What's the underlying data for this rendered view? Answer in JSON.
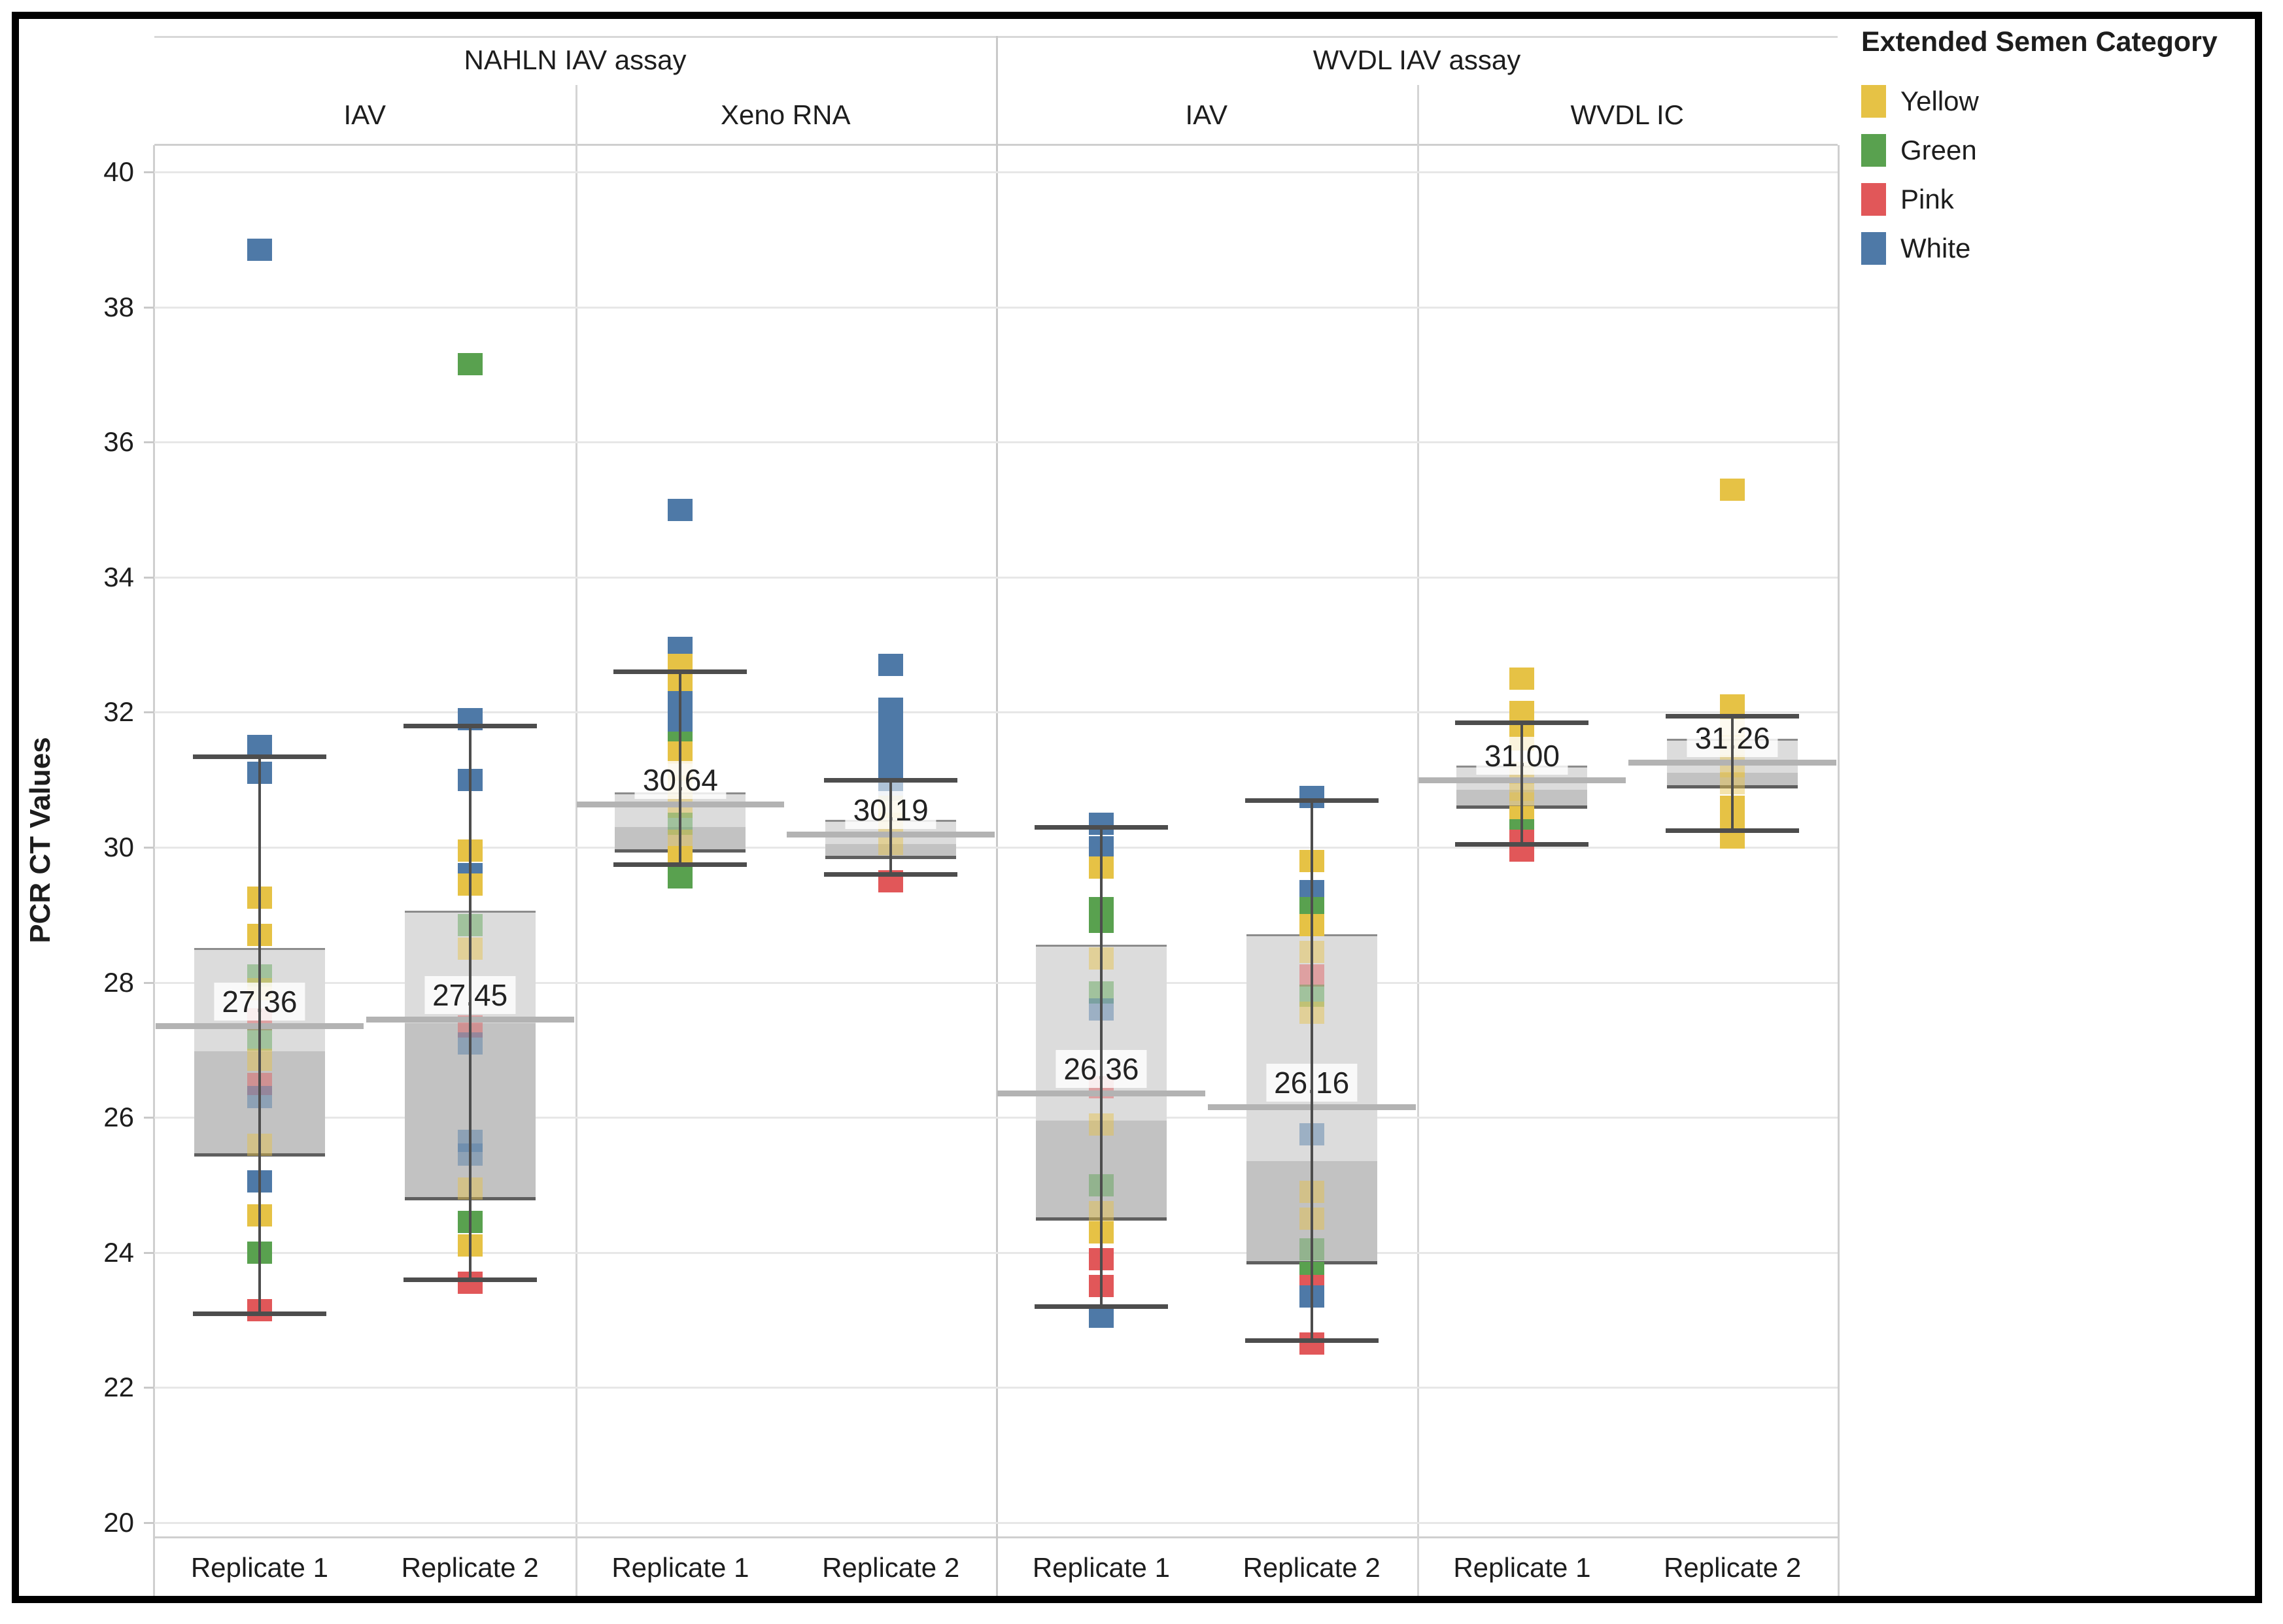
{
  "y_axis": {
    "title": "PCR CT Values",
    "ticks": [
      40,
      38,
      36,
      34,
      32,
      30,
      28,
      26,
      24,
      22,
      20
    ]
  },
  "legend": {
    "title": "Extended Semen Category",
    "items": [
      {
        "label": "Yellow",
        "color": "#E6C245"
      },
      {
        "label": "Green",
        "color": "#59A14F"
      },
      {
        "label": "Pink",
        "color": "#E15759"
      },
      {
        "label": "White",
        "color": "#4E79A7"
      }
    ]
  },
  "chart_data": {
    "type": "boxplot-with-points",
    "title": "",
    "ylabel": "PCR CT Values",
    "ylim": [
      20,
      40
    ],
    "grid": true,
    "legend_position": "top-right",
    "legend_title": "Extended Semen Category",
    "categories": [
      "Yellow",
      "Green",
      "Pink",
      "White"
    ],
    "colors": {
      "Yellow": "#E6C245",
      "Green": "#59A14F",
      "Pink": "#E15759",
      "White": "#4E79A7"
    },
    "assay_headers": [
      {
        "label": "NAHLN IAV assay",
        "panels": [
          0,
          1
        ]
      },
      {
        "label": "WVDL IAV assay",
        "panels": [
          2,
          3
        ]
      }
    ],
    "panels": [
      {
        "assay": "NAHLN IAV assay",
        "target": "IAV",
        "groups": [
          {
            "label": "Replicate 1",
            "mean": 27.36,
            "mean_label": "27.36",
            "whisker_low": 23.1,
            "q1": 25.45,
            "median": 26.98,
            "q3": 28.5,
            "whisker_high": 31.35,
            "points": [
              {
                "v": 38.85,
                "c": "White"
              },
              {
                "v": 31.5,
                "c": "White"
              },
              {
                "v": 31.1,
                "c": "White"
              },
              {
                "v": 29.25,
                "c": "Yellow"
              },
              {
                "v": 28.7,
                "c": "Yellow"
              },
              {
                "v": 28.1,
                "c": "Green",
                "f": true
              },
              {
                "v": 27.9,
                "c": "Yellow",
                "f": true
              },
              {
                "v": 27.45,
                "c": "Pink",
                "f": true
              },
              {
                "v": 27.15,
                "c": "Green",
                "f": true
              },
              {
                "v": 26.85,
                "c": "Yellow",
                "f": true
              },
              {
                "v": 26.5,
                "c": "Pink",
                "f": true
              },
              {
                "v": 26.3,
                "c": "White",
                "f": true
              },
              {
                "v": 25.6,
                "c": "Yellow",
                "f": true
              },
              {
                "v": 25.05,
                "c": "White"
              },
              {
                "v": 24.55,
                "c": "Yellow"
              },
              {
                "v": 24.0,
                "c": "Green"
              },
              {
                "v": 23.15,
                "c": "Pink"
              }
            ]
          },
          {
            "label": "Replicate 2",
            "mean": 27.45,
            "mean_label": "27.45",
            "whisker_low": 23.6,
            "q1": 24.8,
            "median": 27.4,
            "q3": 29.05,
            "whisker_high": 31.8,
            "points": [
              {
                "v": 37.15,
                "c": "Green"
              },
              {
                "v": 31.9,
                "c": "White"
              },
              {
                "v": 31.0,
                "c": "White"
              },
              {
                "v": 29.95,
                "c": "Yellow"
              },
              {
                "v": 29.6,
                "c": "White"
              },
              {
                "v": 29.45,
                "c": "Yellow"
              },
              {
                "v": 28.85,
                "c": "Green",
                "f": true
              },
              {
                "v": 28.5,
                "c": "Yellow",
                "f": true
              },
              {
                "v": 27.35,
                "c": "Pink",
                "f": true
              },
              {
                "v": 27.1,
                "c": "White",
                "f": true
              },
              {
                "v": 25.65,
                "c": "White",
                "f": true
              },
              {
                "v": 25.45,
                "c": "White",
                "f": true
              },
              {
                "v": 24.95,
                "c": "Yellow",
                "f": true
              },
              {
                "v": 24.45,
                "c": "Green"
              },
              {
                "v": 24.1,
                "c": "Yellow"
              },
              {
                "v": 23.55,
                "c": "Pink"
              }
            ]
          }
        ]
      },
      {
        "assay": "NAHLN IAV assay",
        "target": "Xeno RNA",
        "groups": [
          {
            "label": "Replicate 1",
            "mean": 30.64,
            "mean_label": "30.64",
            "whisker_low": 29.75,
            "q1": 29.95,
            "median": 30.3,
            "q3": 30.8,
            "whisker_high": 32.6,
            "points": [
              {
                "v": 35.0,
                "c": "White"
              },
              {
                "v": 32.95,
                "c": "White"
              },
              {
                "v": 32.7,
                "c": "Yellow"
              },
              {
                "v": 32.45,
                "c": "Yellow"
              },
              {
                "v": 32.15,
                "c": "White"
              },
              {
                "v": 31.85,
                "c": "White"
              },
              {
                "v": 31.55,
                "c": "Green"
              },
              {
                "v": 31.4,
                "c": "Yellow"
              },
              {
                "v": 31.15,
                "c": "Yellow",
                "f": true
              },
              {
                "v": 30.9,
                "c": "Yellow",
                "f": true
              },
              {
                "v": 30.6,
                "c": "Yellow",
                "f": true
              },
              {
                "v": 30.35,
                "c": "Green",
                "f": true
              },
              {
                "v": 30.1,
                "c": "Yellow",
                "f": true
              },
              {
                "v": 29.85,
                "c": "Yellow"
              },
              {
                "v": 29.55,
                "c": "Green"
              }
            ]
          },
          {
            "label": "Replicate 2",
            "mean": 30.19,
            "mean_label": "30.19",
            "whisker_low": 29.6,
            "q1": 29.85,
            "median": 30.05,
            "q3": 30.4,
            "whisker_high": 31.0,
            "points": [
              {
                "v": 32.7,
                "c": "White"
              },
              {
                "v": 32.05,
                "c": "White"
              },
              {
                "v": 31.75,
                "c": "White"
              },
              {
                "v": 31.45,
                "c": "White"
              },
              {
                "v": 31.15,
                "c": "White"
              },
              {
                "v": 30.85,
                "c": "White",
                "f": true
              },
              {
                "v": 30.6,
                "c": "Yellow",
                "f": true
              },
              {
                "v": 30.35,
                "c": "Yellow",
                "f": true
              },
              {
                "v": 30.05,
                "c": "Yellow",
                "f": true
              },
              {
                "v": 29.5,
                "c": "Pink"
              }
            ]
          }
        ]
      },
      {
        "assay": "WVDL IAV assay",
        "target": "IAV",
        "groups": [
          {
            "label": "Replicate 1",
            "mean": 26.36,
            "mean_label": "26.36",
            "whisker_low": 23.2,
            "q1": 24.5,
            "median": 25.95,
            "q3": 28.55,
            "whisker_high": 30.3,
            "points": [
              {
                "v": 30.35,
                "c": "White"
              },
              {
                "v": 30.0,
                "c": "White"
              },
              {
                "v": 29.7,
                "c": "Yellow"
              },
              {
                "v": 29.1,
                "c": "Green"
              },
              {
                "v": 28.9,
                "c": "Green"
              },
              {
                "v": 28.35,
                "c": "Yellow",
                "f": true
              },
              {
                "v": 27.85,
                "c": "Green",
                "f": true
              },
              {
                "v": 27.6,
                "c": "White",
                "f": true
              },
              {
                "v": 26.45,
                "c": "Pink",
                "f": true
              },
              {
                "v": 25.9,
                "c": "Yellow",
                "f": true
              },
              {
                "v": 25.0,
                "c": "Green",
                "f": true
              },
              {
                "v": 24.6,
                "c": "Yellow",
                "f": true
              },
              {
                "v": 24.3,
                "c": "Yellow"
              },
              {
                "v": 23.9,
                "c": "Pink"
              },
              {
                "v": 23.5,
                "c": "Pink"
              },
              {
                "v": 23.05,
                "c": "White"
              }
            ]
          },
          {
            "label": "Replicate 2",
            "mean": 26.16,
            "mean_label": "26.16",
            "whisker_low": 22.7,
            "q1": 23.85,
            "median": 25.35,
            "q3": 28.7,
            "whisker_high": 30.7,
            "points": [
              {
                "v": 30.75,
                "c": "White"
              },
              {
                "v": 29.8,
                "c": "Yellow"
              },
              {
                "v": 29.35,
                "c": "White"
              },
              {
                "v": 29.1,
                "c": "Green"
              },
              {
                "v": 28.85,
                "c": "Yellow"
              },
              {
                "v": 28.45,
                "c": "Yellow",
                "f": true
              },
              {
                "v": 28.1,
                "c": "Pink",
                "f": true
              },
              {
                "v": 27.8,
                "c": "Green",
                "f": true
              },
              {
                "v": 27.55,
                "c": "Yellow",
                "f": true
              },
              {
                "v": 25.75,
                "c": "White",
                "f": true
              },
              {
                "v": 24.9,
                "c": "Yellow",
                "f": true
              },
              {
                "v": 24.5,
                "c": "Yellow",
                "f": true
              },
              {
                "v": 24.05,
                "c": "Green",
                "f": true
              },
              {
                "v": 23.7,
                "c": "Green"
              },
              {
                "v": 23.5,
                "c": "Pink"
              },
              {
                "v": 23.35,
                "c": "White"
              },
              {
                "v": 22.65,
                "c": "Pink"
              }
            ]
          }
        ]
      },
      {
        "assay": "WVDL IAV assay",
        "target": "WVDL IC",
        "groups": [
          {
            "label": "Replicate 1",
            "mean": 31.0,
            "mean_label": "31.00",
            "whisker_low": 30.05,
            "q1": 30.6,
            "median": 30.85,
            "q3": 31.2,
            "whisker_high": 31.85,
            "points": [
              {
                "v": 32.5,
                "c": "Yellow"
              },
              {
                "v": 32.0,
                "c": "Yellow"
              },
              {
                "v": 31.9,
                "c": "Yellow"
              },
              {
                "v": 31.6,
                "c": "Yellow"
              },
              {
                "v": 31.1,
                "c": "Yellow",
                "f": true
              },
              {
                "v": 30.85,
                "c": "Yellow",
                "f": true
              },
              {
                "v": 30.65,
                "c": "Yellow",
                "f": true
              },
              {
                "v": 30.45,
                "c": "Yellow"
              },
              {
                "v": 30.3,
                "c": "Yellow"
              },
              {
                "v": 30.25,
                "c": "Green"
              },
              {
                "v": 30.1,
                "c": "Pink"
              },
              {
                "v": 29.95,
                "c": "Pink"
              }
            ]
          },
          {
            "label": "Replicate 2",
            "mean": 31.26,
            "mean_label": "31.26",
            "whisker_low": 30.25,
            "q1": 30.9,
            "median": 31.1,
            "q3": 31.6,
            "whisker_high": 31.95,
            "points": [
              {
                "v": 35.3,
                "c": "Yellow"
              },
              {
                "v": 32.1,
                "c": "Yellow"
              },
              {
                "v": 31.8,
                "c": "Yellow",
                "f": true
              },
              {
                "v": 31.5,
                "c": "Yellow",
                "f": true
              },
              {
                "v": 31.2,
                "c": "Yellow",
                "f": true
              },
              {
                "v": 30.95,
                "c": "Yellow",
                "f": true
              },
              {
                "v": 30.6,
                "c": "Yellow"
              },
              {
                "v": 30.35,
                "c": "Yellow"
              },
              {
                "v": 30.15,
                "c": "Yellow"
              }
            ]
          }
        ]
      }
    ]
  }
}
